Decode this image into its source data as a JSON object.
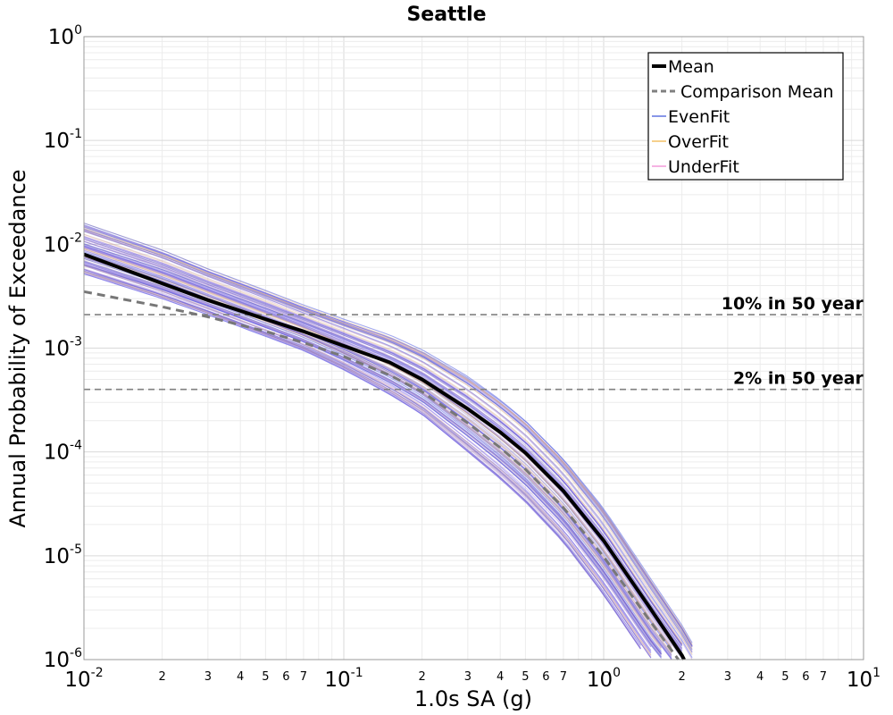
{
  "chart_data": {
    "type": "line",
    "title": "Seattle",
    "xlabel": "1.0s SA (g)",
    "ylabel": "Annual Probability of Exceedance",
    "x_scale": "log",
    "y_scale": "log",
    "xlim": [
      0.01,
      10
    ],
    "ylim": [
      1e-06,
      1
    ],
    "grid": true,
    "legend_position": "top-right",
    "x_major_ticks": [
      {
        "base": "10",
        "exp": "-2",
        "value": 0.01
      },
      {
        "base": "10",
        "exp": "-1",
        "value": 0.1
      },
      {
        "base": "10",
        "exp": "0",
        "value": 1
      },
      {
        "base": "10",
        "exp": "1",
        "value": 10
      }
    ],
    "y_major_ticks": [
      {
        "base": "10",
        "exp": "0",
        "value": 1
      },
      {
        "base": "10",
        "exp": "-1",
        "value": 0.1
      },
      {
        "base": "10",
        "exp": "-2",
        "value": 0.01
      },
      {
        "base": "10",
        "exp": "-3",
        "value": 0.001
      },
      {
        "base": "10",
        "exp": "-4",
        "value": 0.0001
      },
      {
        "base": "10",
        "exp": "-5",
        "value": 1e-05
      },
      {
        "base": "10",
        "exp": "-6",
        "value": 1e-06
      }
    ],
    "x_minor_labels": [
      "2",
      "3",
      "4",
      "5",
      "6",
      "7"
    ],
    "legend": [
      {
        "label": "Mean",
        "color": "#000000",
        "style": "solid-thick"
      },
      {
        "label": "Comparison Mean",
        "color": "#808080",
        "style": "dashed"
      },
      {
        "label": "EvenFit",
        "color": "#3a4fd8",
        "style": "solid-thin"
      },
      {
        "label": "OverFit",
        "color": "#f0b040",
        "style": "solid-thin"
      },
      {
        "label": "UnderFit",
        "color": "#f080d0",
        "style": "solid-thin"
      }
    ],
    "reference_lines": [
      {
        "label": "10% in 50 year",
        "y": 0.0021
      },
      {
        "label": "2% in 50 year",
        "y": 0.0004
      }
    ],
    "series": [
      {
        "name": "Mean",
        "x": [
          0.01,
          0.02,
          0.03,
          0.05,
          0.07,
          0.1,
          0.15,
          0.2,
          0.3,
          0.4,
          0.5,
          0.7,
          1.0,
          1.5,
          2.0,
          2.2
        ],
        "y": [
          0.008,
          0.0042,
          0.0029,
          0.0019,
          0.00145,
          0.00105,
          0.00073,
          0.0005,
          0.00026,
          0.000155,
          9.8e-05,
          4.2e-05,
          1.4e-05,
          3.2e-06,
          1.1e-06,
          7e-07
        ]
      },
      {
        "name": "Comparison Mean",
        "x": [
          0.01,
          0.02,
          0.03,
          0.05,
          0.07,
          0.1,
          0.15,
          0.2,
          0.3,
          0.4,
          0.5,
          0.7,
          1.0,
          1.5,
          2.0,
          2.2
        ],
        "y": [
          0.0035,
          0.0025,
          0.002,
          0.00145,
          0.00113,
          0.00083,
          0.00055,
          0.00038,
          0.00019,
          0.00011,
          6.8e-05,
          2.9e-05,
          9.8e-06,
          2.4e-06,
          9e-07,
          6e-07
        ]
      }
    ],
    "band": {
      "x": [
        0.01,
        0.02,
        0.03,
        0.05,
        0.07,
        0.1,
        0.15,
        0.2,
        0.3,
        0.4,
        0.5,
        0.7,
        1.0,
        1.5,
        2.0,
        2.4
      ],
      "upper": [
        0.016,
        0.0088,
        0.0058,
        0.0036,
        0.0026,
        0.0019,
        0.00135,
        0.00098,
        0.00055,
        0.00033,
        0.00021,
        9e-05,
        3e-05,
        6.5e-06,
        2.2e-06,
        1e-06
      ],
      "lower": [
        0.0052,
        0.003,
        0.0021,
        0.0013,
        0.00095,
        0.00062,
        0.00036,
        0.00023,
        0.0001,
        5.5e-05,
        3.3e-05,
        1.35e-05,
        4.2e-06,
        9.5e-07,
        4e-07,
        2e-07
      ]
    }
  }
}
